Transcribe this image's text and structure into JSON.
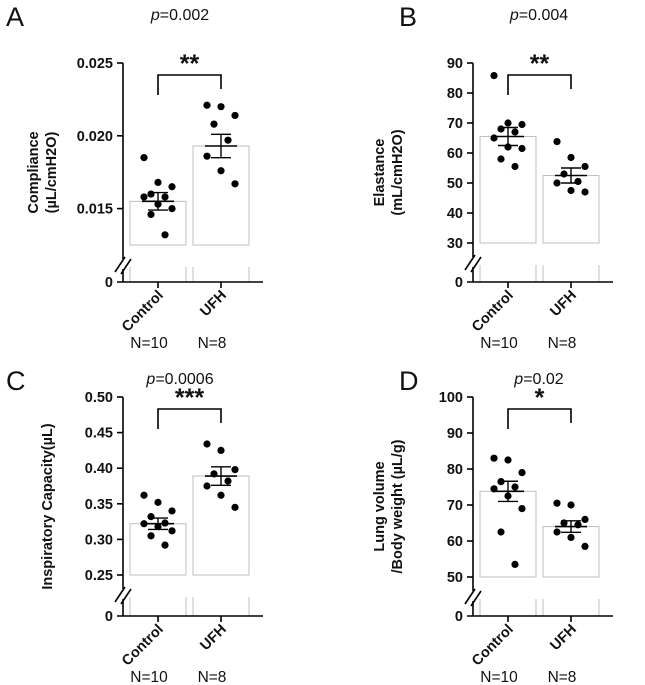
{
  "figure": {
    "colors": {
      "bar_fill": "#ffffff",
      "bar_stroke": "#bfbfbf",
      "axis": "#000000",
      "point": "#000000"
    }
  },
  "chart_data": [
    {
      "type": "bar",
      "panel": "A",
      "p_value": "0.002",
      "significance": "**",
      "ylabel_lines": [
        "Compliance",
        "(µL/cmH2O)"
      ],
      "yticks": [
        "0.015",
        "0.020",
        "0.025"
      ],
      "ytick_values": [
        0.015,
        0.02,
        0.025
      ],
      "ylim": [
        0.0125,
        0.025
      ],
      "axis_break": true,
      "break_zero_label": "0",
      "categories": [
        "Control",
        "UFH"
      ],
      "n_labels": [
        "N=10",
        "N=8"
      ],
      "means": [
        0.0155,
        0.0193
      ],
      "sem": [
        0.0006,
        0.0008
      ],
      "points": [
        [
          0.0185,
          0.0168,
          0.0165,
          0.016,
          0.0158,
          0.0158,
          0.0153,
          0.015,
          0.0146,
          0.0132
        ],
        [
          0.0221,
          0.022,
          0.0214,
          0.0208,
          0.0197,
          0.0186,
          0.0176,
          0.0167
        ]
      ]
    },
    {
      "type": "bar",
      "panel": "B",
      "p_value": "0.004",
      "significance": "**",
      "ylabel_lines": [
        "Elastance",
        "(mL/cmH2O)"
      ],
      "yticks": [
        "30",
        "40",
        "50",
        "60",
        "70",
        "80",
        "90"
      ],
      "ytick_values": [
        30,
        40,
        50,
        60,
        70,
        80,
        90
      ],
      "ylim": [
        30,
        90
      ],
      "axis_break": true,
      "break_zero_label": "0",
      "categories": [
        "Control",
        "UFH"
      ],
      "n_labels": [
        "N=10",
        "N=8"
      ],
      "means": [
        65.5,
        52.5
      ],
      "sem": [
        3.0,
        2.5
      ],
      "points": [
        [
          85.8,
          70.0,
          69.5,
          68.0,
          67.0,
          65.0,
          62.0,
          61.5,
          58.0,
          55.5
        ],
        [
          63.8,
          58.5,
          55.5,
          53.0,
          50.5,
          50.0,
          47.5,
          47.0
        ]
      ]
    },
    {
      "type": "bar",
      "panel": "C",
      "p_value": "0.0006",
      "significance": "***",
      "ylabel_lines": [
        "Inspiratory Capacity(µL)"
      ],
      "yticks": [
        "0.25",
        "0.30",
        "0.35",
        "0.40",
        "0.45",
        "0.50"
      ],
      "ytick_values": [
        0.25,
        0.3,
        0.35,
        0.4,
        0.45,
        0.5
      ],
      "ylim": [
        0.25,
        0.5
      ],
      "axis_break": true,
      "break_zero_label": "0",
      "categories": [
        "Control",
        "UFH"
      ],
      "n_labels": [
        "N=10",
        "N=8"
      ],
      "means": [
        0.322,
        0.389
      ],
      "sem": [
        0.008,
        0.013
      ],
      "points": [
        [
          0.362,
          0.352,
          0.34,
          0.332,
          0.323,
          0.322,
          0.318,
          0.312,
          0.305,
          0.292
        ],
        [
          0.434,
          0.425,
          0.398,
          0.392,
          0.382,
          0.375,
          0.362,
          0.345
        ]
      ]
    },
    {
      "type": "bar",
      "panel": "D",
      "p_value": "0.02",
      "significance": "*",
      "ylabel_lines": [
        "Lung volume",
        "/Body weight (µL/g)"
      ],
      "yticks": [
        "50",
        "60",
        "70",
        "80",
        "90",
        "100"
      ],
      "ytick_values": [
        50,
        60,
        70,
        80,
        90,
        100
      ],
      "ylim": [
        50,
        100
      ],
      "axis_break": true,
      "break_zero_label": "0",
      "categories": [
        "Control",
        "UFH"
      ],
      "n_labels": [
        "N=10",
        "N=8"
      ],
      "means": [
        73.8,
        64.0
      ],
      "sem": [
        2.8,
        1.6
      ],
      "points": [
        [
          83.0,
          82.5,
          79.0,
          76.5,
          75.0,
          74.5,
          72.5,
          69.0,
          62.5,
          53.5
        ],
        [
          70.5,
          70.0,
          66.0,
          65.0,
          64.5,
          62.5,
          61.0,
          58.5
        ]
      ]
    }
  ]
}
